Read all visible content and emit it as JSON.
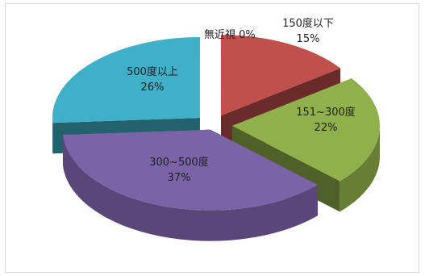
{
  "chart_data": {
    "type": "pie",
    "style": "3d-exploded",
    "title": "",
    "slices": [
      {
        "label": "無近視",
        "value": 0,
        "percent_label": "0%",
        "color": "#e23b36"
      },
      {
        "label": "150度以下",
        "value": 15,
        "percent_label": "15%",
        "color": "#c0504d"
      },
      {
        "label": "151~300度",
        "value": 22,
        "percent_label": "22%",
        "color": "#8fb04a"
      },
      {
        "label": "300~500度",
        "value": 37,
        "percent_label": "37%",
        "color": "#7a63a6"
      },
      {
        "label": "500度以上",
        "value": 26,
        "percent_label": "26%",
        "color": "#3fb0c7"
      }
    ],
    "legend": "none",
    "data_labels": "category and percent"
  }
}
